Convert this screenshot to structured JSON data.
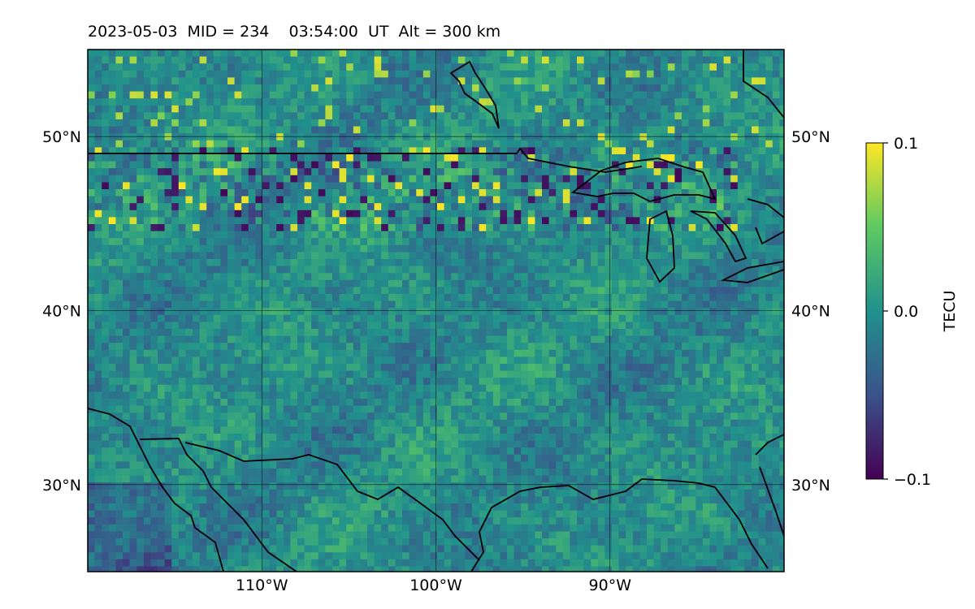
{
  "header": {
    "title": "2023-05-03  MID = 234    03:54:00  UT  Alt = 300 km"
  },
  "map": {
    "projection": "plate-carree",
    "lon_range": [
      -120,
      -80
    ],
    "lat_range": [
      25,
      55
    ],
    "gridlines": true,
    "lat_ticks": [
      {
        "value": 50,
        "label": "50°N"
      },
      {
        "value": 40,
        "label": "40°N"
      },
      {
        "value": 30,
        "label": "30°N"
      }
    ],
    "lon_ticks": [
      {
        "value": -110,
        "label": "110°W"
      },
      {
        "value": -100,
        "label": "100°W"
      },
      {
        "value": -90,
        "label": "90°W"
      }
    ],
    "field": "differential TEC",
    "notable_features": "band of strong positive/negative perturbations along ~48-50°N; weak negatives in SW corner"
  },
  "colorbar": {
    "label": "TECU",
    "colormap": "viridis",
    "min": -0.1,
    "max": 0.1,
    "ticks": [
      {
        "value": 0.1,
        "label": "0.1"
      },
      {
        "value": 0.0,
        "label": "0.0"
      },
      {
        "value": -0.1,
        "label": "−0.1"
      }
    ],
    "colors": [
      "#440154",
      "#3b528b",
      "#21918c",
      "#5ec962",
      "#fde725"
    ]
  }
}
